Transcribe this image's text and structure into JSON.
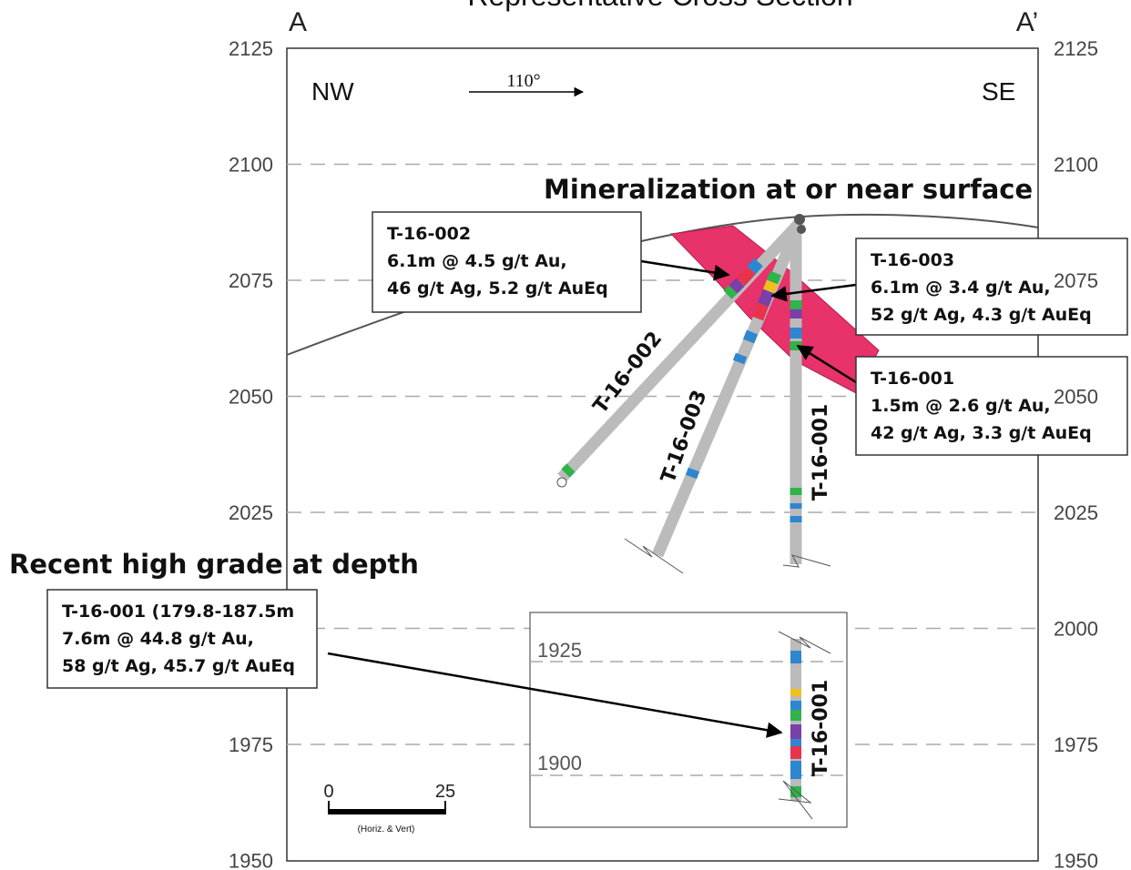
{
  "title": "Representative Cross Section",
  "section": {
    "start": "A",
    "end": "A’"
  },
  "elevations": {
    "left": [
      2125,
      2100,
      2075,
      2050,
      2025,
      1975,
      1950
    ],
    "right": [
      2125,
      2100,
      2075,
      2050,
      2025,
      2000,
      1975,
      1950
    ]
  },
  "orientation": {
    "left": "NW",
    "right": "SE",
    "bearing": "110°"
  },
  "headline_surface": "Mineralization at or near surface",
  "headline_depth": "Recent high grade at depth",
  "callouts": [
    {
      "lines": [
        "T-16-002",
        "6.1m @ 4.5 g/t Au,",
        "46 g/t Ag, 5.2 g/t AuEq"
      ]
    },
    {
      "lines": [
        "T-16-003",
        "6.1m @ 3.4 g/t Au,",
        "52 g/t Ag, 4.3 g/t AuEq"
      ]
    },
    {
      "lines": [
        "T-16-001",
        "1.5m @ 2.6 g/t Au,",
        "42 g/t Ag, 3.3 g/t AuEq"
      ]
    },
    {
      "lines": [
        "T-16-001 (179.8-187.5m",
        "7.6m @ 44.8 g/t Au,",
        "58 g/t Ag, 45.7 g/t AuEq"
      ]
    }
  ],
  "hole_labels": [
    "T-16-002",
    "T-16-003",
    "T-16-001"
  ],
  "inset": {
    "elevations": [
      1925,
      1900
    ],
    "hole_label": "T-16-001"
  },
  "scale": {
    "min": "0",
    "max": "25",
    "note": "(Horiz. & Vert)"
  }
}
